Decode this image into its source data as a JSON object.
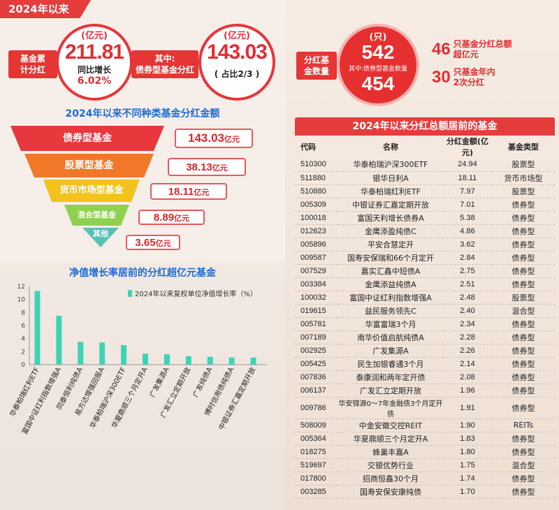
{
  "header": {
    "tag": "2024年以来"
  },
  "summary": {
    "total_label": "基金累\n计分红",
    "total_unit": "(亿元)",
    "total_value": "211.81",
    "total_growth_label": "同比增长",
    "total_growth": "6.02%",
    "bond_label": "其中:\n债券型基金分红",
    "bond_unit": "(亿元)",
    "bond_value": "143.03",
    "bond_share": "( 占比2/3 )",
    "count_label": "分红基\n金数量",
    "count_unit": "(只)",
    "count_value": "542",
    "count_note": "其中:债券型基金数量",
    "count_bond": "454",
    "stat1_num": "46",
    "stat1_text": "只基金分红总额\n超亿元",
    "stat2_num": "30",
    "stat2_text": "只基金年内\n2次分红"
  },
  "funnel": {
    "title": "2024年以来不同种类基金分红金额",
    "unit": "亿元",
    "items": [
      {
        "name": "债券型基金",
        "value": "143.03",
        "color": "#e8383d"
      },
      {
        "name": "股票型基金",
        "value": "38.13",
        "color": "#f07828"
      },
      {
        "name": "货币市场型基金",
        "value": "18.11",
        "color": "#f3c21c"
      },
      {
        "name": "混合型基金",
        "value": "8.89",
        "color": "#8fd14f"
      },
      {
        "name": "其他",
        "value": "3.65",
        "color": "#57c2b5"
      }
    ]
  },
  "chart_data": {
    "type": "bar",
    "title": "净值增长率居前的分红超亿元基金",
    "legend": "2024年以来复权单位净值增长率（%）",
    "legend_position": "top-right",
    "ylim": [
      0,
      12
    ],
    "yticks": [
      0,
      2,
      4,
      6,
      8,
      10,
      12
    ],
    "categories": [
      "华泰柏瑞红利ETF",
      "富国中证红利指数增强A",
      "同泰恒利纯债A",
      "易方达增强回报A",
      "华泰柏瑞沪深300ETF",
      "华夏鼎顺三个月定开A",
      "广发集源A",
      "广发汇立定期开放",
      "广发纯债A",
      "博时信用债纯债A",
      "中银证券汇嘉定期开放"
    ],
    "values": [
      11.3,
      7.5,
      3.5,
      3.4,
      3.0,
      1.7,
      1.6,
      1.3,
      1.2,
      1.1,
      1.1
    ],
    "bar_color": "#3fd3b6"
  },
  "table": {
    "title": "2024年以来分红总额居前的基金",
    "headers": [
      "代码",
      "名称",
      "分红金额(亿元)",
      "基金类型"
    ],
    "rows": [
      [
        "510300",
        "华泰柏瑞沪深300ETF",
        "24.94",
        "股票型"
      ],
      [
        "511880",
        "银华日利A",
        "18.11",
        "货币市场型"
      ],
      [
        "510880",
        "华泰柏瑞红利ETF",
        "7.97",
        "股票型"
      ],
      [
        "005309",
        "中银证券汇嘉定期开放",
        "7.01",
        "债券型"
      ],
      [
        "100018",
        "富国天利增长债券A",
        "5.38",
        "债券型"
      ],
      [
        "012623",
        "金鹰添盈纯债C",
        "4.86",
        "债券型"
      ],
      [
        "005896",
        "平安合慧定开",
        "3.62",
        "债券型"
      ],
      [
        "009587",
        "国寿安保瑞和66个月定开",
        "2.84",
        "债券型"
      ],
      [
        "007529",
        "嘉实汇鑫中短债A",
        "2.75",
        "债券型"
      ],
      [
        "003384",
        "金鹰添益纯债A",
        "2.51",
        "债券型"
      ],
      [
        "100032",
        "富国中证红利指数增强A",
        "2.48",
        "股票型"
      ],
      [
        "019615",
        "益民服务领先C",
        "2.40",
        "混合型"
      ],
      [
        "005781",
        "华富富瑞3个月",
        "2.34",
        "债券型"
      ],
      [
        "007189",
        "南华价值启航纯债A",
        "2.28",
        "债券型"
      ],
      [
        "002925",
        "广发集源A",
        "2.26",
        "债券型"
      ],
      [
        "005425",
        "民生加银睿通3个月",
        "2.14",
        "债券型"
      ],
      [
        "007836",
        "泰康润和两年定开债",
        "2.08",
        "债券型"
      ],
      [
        "006137",
        "广发汇立定期开放",
        "1.96",
        "债券型"
      ],
      [
        "009786",
        "华安锦源0～7年金融债3个月定开债",
        "1.91",
        "债券型"
      ],
      [
        "508009",
        "中金安徽交控REIT",
        "1.90",
        "REITs"
      ],
      [
        "005364",
        "华夏鼎顺三个月定开A",
        "1.83",
        "债券型"
      ],
      [
        "018275",
        "蜂巢丰嘉A",
        "1.80",
        "债券型"
      ],
      [
        "519697",
        "交银优势行业",
        "1.75",
        "混合型"
      ],
      [
        "017800",
        "招商恒鑫30个月",
        "1.74",
        "债券型"
      ],
      [
        "003285",
        "国寿安保安康纯债",
        "1.70",
        "债券型"
      ]
    ]
  }
}
